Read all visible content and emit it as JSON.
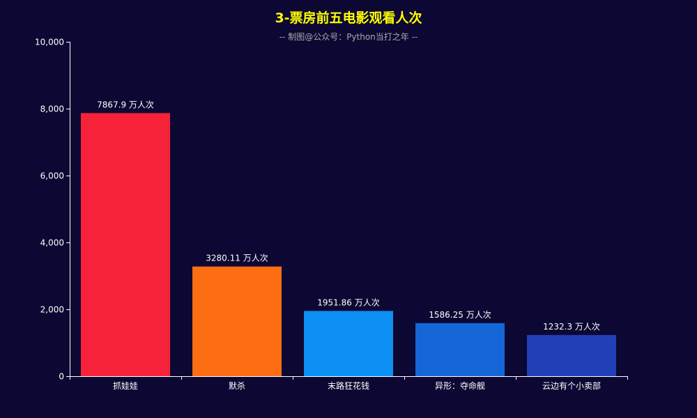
{
  "chart_data": {
    "type": "bar",
    "title": "3-票房前五电影观看人次",
    "subtitle": "-- 制图@公众号：Python当打之年 --",
    "categories": [
      "抓娃娃",
      "默杀",
      "末路狂花钱",
      "异形：夺命舰",
      "云边有个小卖部"
    ],
    "values": [
      7867.9,
      3280.11,
      1951.86,
      1586.25,
      1232.3
    ],
    "value_labels": [
      "7867.9 万人次",
      "3280.11 万人次",
      "1951.86 万人次",
      "1586.25 万人次",
      "1232.3 万人次"
    ],
    "bar_colors": [
      "#f5223a",
      "#fd6d14",
      "#0b8ff2",
      "#1567d8",
      "#223fb8"
    ],
    "ylim": [
      0,
      10000
    ],
    "yticks": [
      0,
      2000,
      4000,
      6000,
      8000,
      10000
    ],
    "ytick_labels": [
      "0",
      "2,000",
      "4,000",
      "6,000",
      "8,000",
      "10,000"
    ],
    "xlabel": "",
    "ylabel": "",
    "grid": false
  },
  "colors": {
    "background": "#0c0833",
    "title": "#ffff00",
    "subtitle": "#aaaaaa",
    "axis": "#ffffff",
    "text": "#ffffff"
  }
}
